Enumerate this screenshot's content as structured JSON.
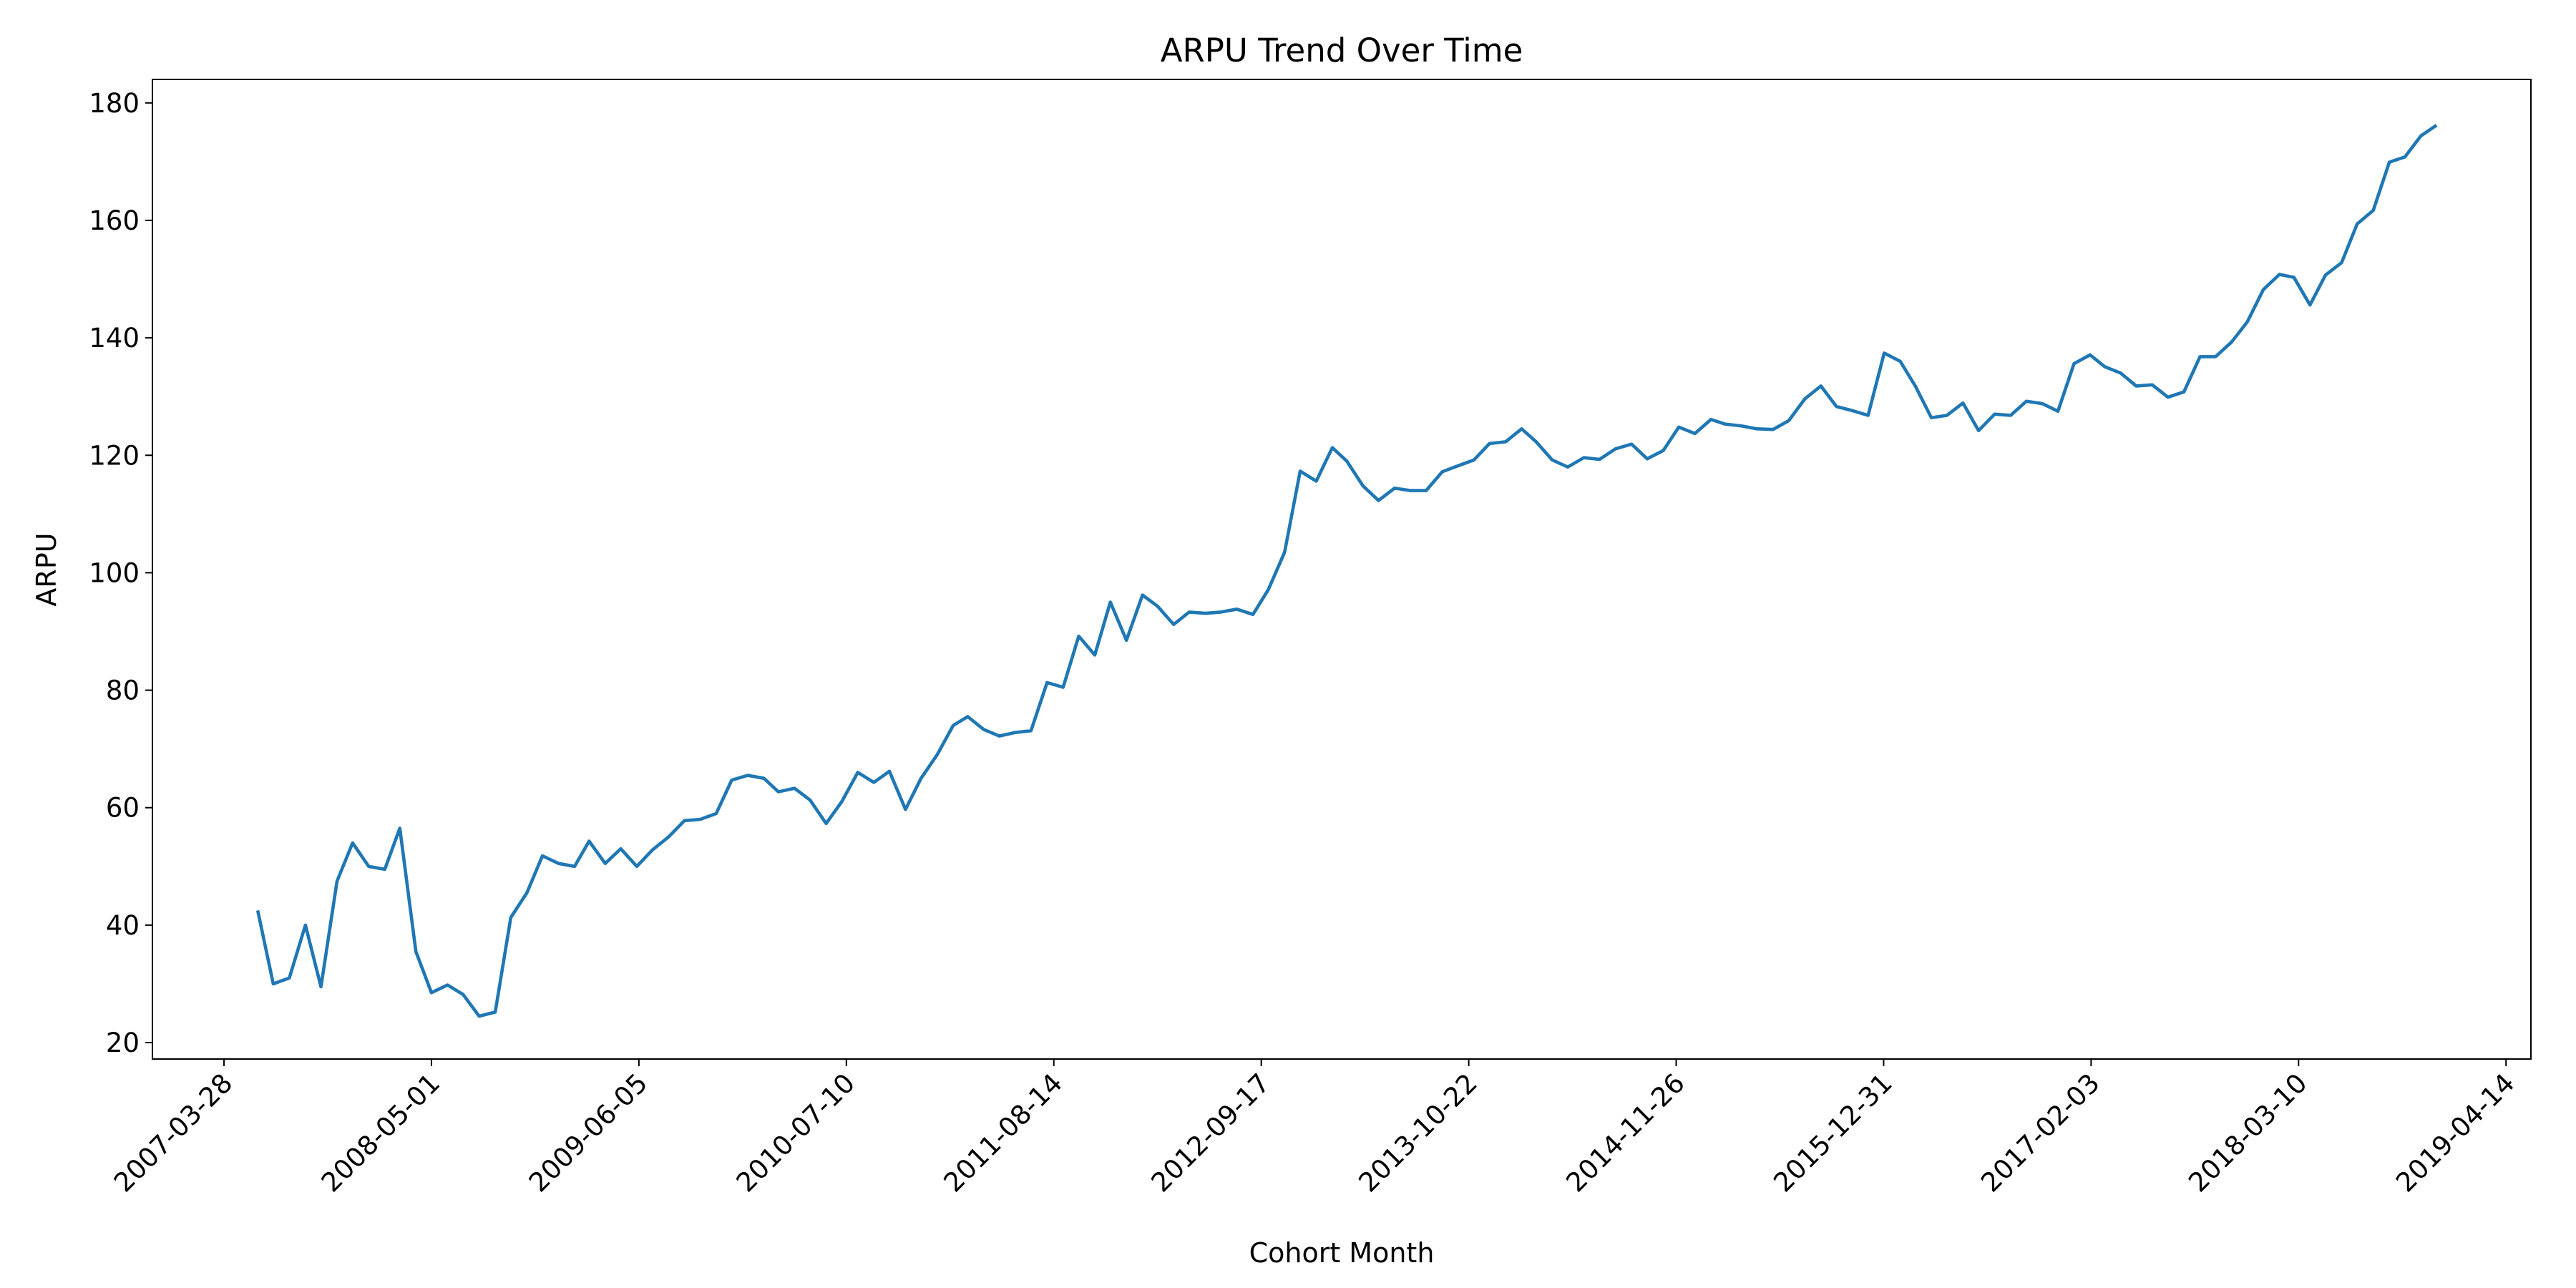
{
  "chart_data": {
    "type": "line",
    "title": "ARPU Trend Over Time",
    "x_label": "Cohort Month",
    "y_label": "ARPU",
    "x": [
      "2007-06-01",
      "2007-07-01",
      "2007-08-01",
      "2007-09-01",
      "2007-10-01",
      "2007-11-01",
      "2007-12-01",
      "2008-01-01",
      "2008-02-01",
      "2008-03-01",
      "2008-04-01",
      "2008-05-01",
      "2008-06-01",
      "2008-07-01",
      "2008-08-01",
      "2008-09-01",
      "2008-10-01",
      "2008-11-01",
      "2008-12-01",
      "2009-01-01",
      "2009-02-01",
      "2009-03-01",
      "2009-04-01",
      "2009-05-01",
      "2009-06-01",
      "2009-07-01",
      "2009-08-01",
      "2009-09-01",
      "2009-10-01",
      "2009-11-01",
      "2009-12-01",
      "2010-01-01",
      "2010-02-01",
      "2010-03-01",
      "2010-04-01",
      "2010-05-01",
      "2010-06-01",
      "2010-07-01",
      "2010-08-01",
      "2010-09-01",
      "2010-10-01",
      "2010-11-01",
      "2010-12-01",
      "2011-01-01",
      "2011-02-01",
      "2011-03-01",
      "2011-04-01",
      "2011-05-01",
      "2011-06-01",
      "2011-07-01",
      "2011-08-01",
      "2011-09-01",
      "2011-10-01",
      "2011-11-01",
      "2011-12-01",
      "2012-01-01",
      "2012-02-01",
      "2012-03-01",
      "2012-04-01",
      "2012-05-01",
      "2012-06-01",
      "2012-07-01",
      "2012-08-01",
      "2012-09-01",
      "2012-10-01",
      "2012-11-01",
      "2012-12-01",
      "2013-01-01",
      "2013-02-01",
      "2013-03-01",
      "2013-04-01",
      "2013-05-01",
      "2013-06-01",
      "2013-07-01",
      "2013-08-01",
      "2013-09-01",
      "2013-10-01",
      "2013-11-01",
      "2013-12-01",
      "2014-01-01",
      "2014-02-01",
      "2014-03-01",
      "2014-04-01",
      "2014-05-01",
      "2014-06-01",
      "2014-07-01",
      "2014-08-01",
      "2014-09-01",
      "2014-10-01",
      "2014-11-01",
      "2014-12-01",
      "2015-01-01",
      "2015-02-01",
      "2015-03-01",
      "2015-04-01",
      "2015-05-01",
      "2015-06-01",
      "2015-07-01",
      "2015-08-01",
      "2015-09-01",
      "2015-10-01",
      "2015-11-01",
      "2015-12-01",
      "2016-01-01",
      "2016-02-01",
      "2016-03-01",
      "2016-04-01",
      "2016-05-01",
      "2016-06-01",
      "2016-07-01",
      "2016-08-01",
      "2016-09-01",
      "2016-10-01",
      "2016-11-01",
      "2016-12-01",
      "2017-01-01",
      "2017-02-01",
      "2017-03-01",
      "2017-04-01",
      "2017-05-01",
      "2017-06-01",
      "2017-07-01",
      "2017-08-01",
      "2017-09-01",
      "2017-10-01",
      "2017-11-01",
      "2017-12-01",
      "2018-01-01",
      "2018-02-01",
      "2018-03-01",
      "2018-04-01",
      "2018-05-01",
      "2018-06-01",
      "2018-07-01",
      "2018-08-01",
      "2018-09-01",
      "2018-10-01",
      "2018-11-01",
      "2018-12-01"
    ],
    "series": [
      {
        "name": "ARPU",
        "color": "#1f77b4",
        "values": [
          42.5,
          30,
          31,
          40,
          29.5,
          47.5,
          54,
          50,
          49.5,
          56.5,
          35.5,
          28.5,
          29.8,
          28.2,
          24.5,
          25.2,
          41.3,
          45.5,
          51.8,
          50.5,
          50,
          54.3,
          50.5,
          53,
          50,
          52.8,
          55,
          57.8,
          58,
          59,
          64.7,
          65.5,
          65,
          62.7,
          63.3,
          61.3,
          57.3,
          61,
          66,
          64.3,
          66.2,
          59.7,
          65,
          69,
          74,
          75.5,
          73.3,
          72.2,
          72.8,
          73.1,
          81.3,
          80.5,
          89.2,
          86,
          95,
          88.5,
          96.2,
          94.3,
          91.2,
          93.3,
          93.1,
          93.3,
          93.8,
          92.9,
          97.2,
          103.5,
          117.3,
          115.6,
          121.3,
          119,
          114.8,
          112.3,
          114.4,
          114,
          114,
          117.2,
          118.2,
          119.2,
          122,
          122.3,
          124.5,
          122.3,
          119.2,
          118,
          119.6,
          119.3,
          121.1,
          121.9,
          119.4,
          120.8,
          124.8,
          123.7,
          126.1,
          125.3,
          125,
          124.5,
          124.4,
          125.9,
          129.6,
          131.8,
          128.3,
          127.6,
          126.8,
          137.4,
          136,
          131.8,
          126.4,
          126.8,
          128.9,
          124.2,
          127,
          126.8,
          129.2,
          128.8,
          127.5,
          135.6,
          137.1,
          135.1,
          134,
          131.8,
          132,
          129.9,
          130.8,
          136.8,
          136.8,
          139.3,
          142.7,
          148.2,
          150.8,
          150.3,
          145.6,
          150.7,
          152.8,
          159.4,
          161.7,
          169.9,
          170.8,
          174.4,
          176.2
        ]
      }
    ],
    "xlim": [
      "2006-11-10",
      "2019-06-01"
    ],
    "xticks": [
      "2007-03-28",
      "2008-05-01",
      "2009-06-05",
      "2010-07-10",
      "2011-08-14",
      "2012-09-17",
      "2013-10-22",
      "2014-11-26",
      "2015-12-31",
      "2017-02-03",
      "2018-03-10",
      "2019-04-14"
    ],
    "ylim": [
      17.2,
      184
    ],
    "yticks": [
      20,
      40,
      60,
      80,
      100,
      120,
      140,
      160,
      180
    ],
    "grid": false
  }
}
